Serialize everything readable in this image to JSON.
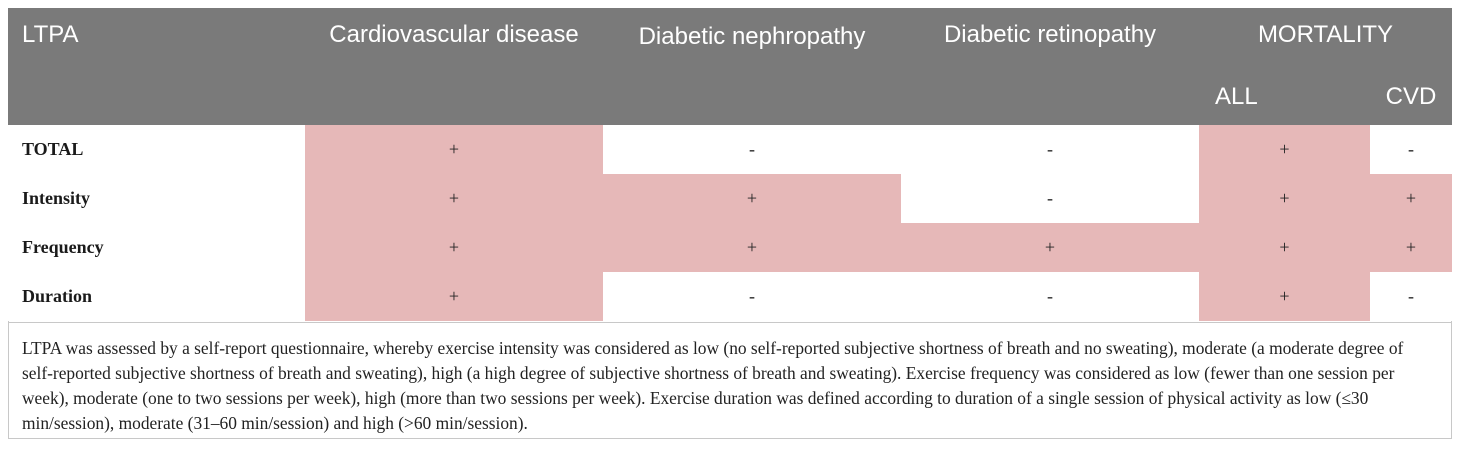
{
  "header": {
    "ltpa": "LTPA",
    "cvd_disease": "Cardiovascular disease",
    "nephropathy": "Diabetic nephropathy",
    "retinopathy": "Diabetic retinopathy",
    "mortality": "MORTALITY",
    "all": "ALL",
    "cvd": "CVD"
  },
  "rows": [
    {
      "label": "TOTAL",
      "cells": [
        "+",
        "-",
        "-",
        "+",
        "-"
      ]
    },
    {
      "label": "Intensity",
      "cells": [
        "+",
        "+",
        "-",
        "+",
        "+"
      ]
    },
    {
      "label": "Frequency",
      "cells": [
        "+",
        "+",
        "+",
        "+",
        "+"
      ]
    },
    {
      "label": "Duration",
      "cells": [
        "+",
        "-",
        "-",
        "+",
        "-"
      ]
    }
  ],
  "highlight_color": "#e6b8b8",
  "header_color": "#7a7a7a",
  "footnote": "LTPA was assessed by a self-report questionnaire, whereby exercise intensity was considered as low (no self-reported subjective shortness of breath and no sweating), moderate (a moderate degree of self-reported subjective shortness of breath and sweating), high (a high degree of subjective shortness of breath and sweating). Exercise frequency was considered as low (fewer than one session per week), moderate (one to two sessions per week), high (more than two sessions per week). Exercise duration was defined according to duration of a single session of physical activity as low (≤30 min/session), moderate (31–60 min/session) and high (>60 min/session)."
}
